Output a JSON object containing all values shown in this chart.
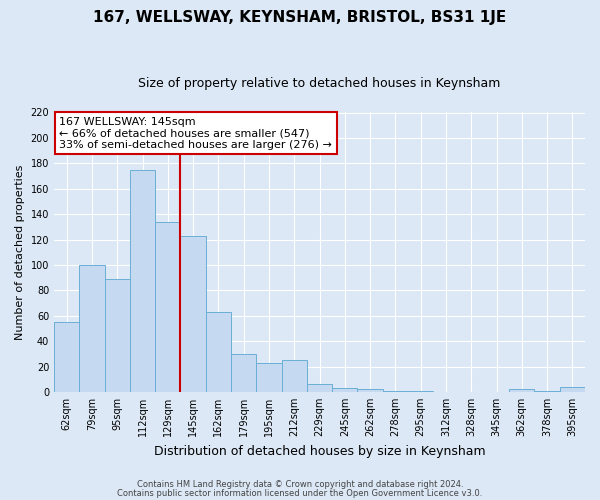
{
  "title": "167, WELLSWAY, KEYNSHAM, BRISTOL, BS31 1JE",
  "subtitle": "Size of property relative to detached houses in Keynsham",
  "xlabel": "Distribution of detached houses by size in Keynsham",
  "ylabel": "Number of detached properties",
  "bar_labels": [
    "62sqm",
    "79sqm",
    "95sqm",
    "112sqm",
    "129sqm",
    "145sqm",
    "162sqm",
    "179sqm",
    "195sqm",
    "212sqm",
    "229sqm",
    "245sqm",
    "262sqm",
    "278sqm",
    "295sqm",
    "312sqm",
    "328sqm",
    "345sqm",
    "362sqm",
    "378sqm",
    "395sqm"
  ],
  "bar_values": [
    55,
    100,
    89,
    175,
    134,
    123,
    63,
    30,
    23,
    25,
    6,
    3,
    2,
    1,
    1,
    0,
    0,
    0,
    2,
    1,
    4
  ],
  "bar_color": "#c5d9f0",
  "bar_edgecolor": "#6baed6",
  "vline_color": "#cc0000",
  "ylim": [
    0,
    220
  ],
  "yticks": [
    0,
    20,
    40,
    60,
    80,
    100,
    120,
    140,
    160,
    180,
    200,
    220
  ],
  "annotation_title": "167 WELLSWAY: 145sqm",
  "annotation_line1": "← 66% of detached houses are smaller (547)",
  "annotation_line2": "33% of semi-detached houses are larger (276) →",
  "annotation_box_facecolor": "#ffffff",
  "annotation_box_edgecolor": "#cc0000",
  "footer1": "Contains HM Land Registry data © Crown copyright and database right 2024.",
  "footer2": "Contains public sector information licensed under the Open Government Licence v3.0.",
  "background_color": "#dce8f5",
  "grid_color": "#ffffff",
  "title_fontsize": 11,
  "subtitle_fontsize": 9,
  "ylabel_fontsize": 8,
  "xlabel_fontsize": 9,
  "tick_fontsize": 7,
  "annotation_fontsize": 8,
  "footer_fontsize": 6
}
